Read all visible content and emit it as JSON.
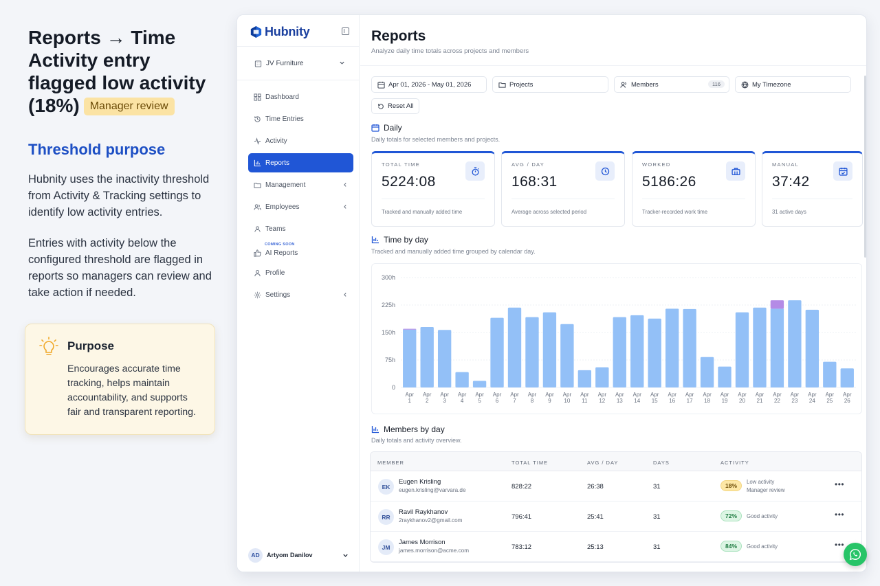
{
  "explainer": {
    "title": "Reports → Time Activity entry flagged low activity (18%)",
    "badge": "Manager review",
    "subheading": "Threshold purpose",
    "paragraph1": "Hubnity uses the inactivity threshold from Activity & Tracking settings to identify low activity entries.",
    "paragraph2": "Entries with activity below the configured threshold are flagged in reports so managers can review and take action if needed.",
    "purpose_title": "Purpose",
    "purpose_body": "Encourages accurate time tracking, helps maintain accountability, and supports fair and transparent reporting.",
    "purpose_icon": "lightbulb-icon"
  },
  "app": {
    "brand": "Hubnity",
    "org": "JV Furniture",
    "nav": [
      {
        "label": "Dashboard",
        "icon": "grid-icon"
      },
      {
        "label": "Time Entries",
        "icon": "history-icon"
      },
      {
        "label": "Activity",
        "icon": "activity-icon"
      },
      {
        "label": "Reports",
        "icon": "bar-chart-icon",
        "active": true
      },
      {
        "label": "Management",
        "icon": "folder-icon"
      },
      {
        "label": "Employees",
        "icon": "users-icon"
      },
      {
        "label": "Teams",
        "icon": "team-icon"
      },
      {
        "label": "AI Reports",
        "icon": "thumb-icon",
        "tag": "COMING SOON"
      },
      {
        "label": "Profile",
        "icon": "user-icon"
      },
      {
        "label": "Settings",
        "icon": "gear-icon"
      }
    ],
    "user": {
      "initials": "AD",
      "name": "Artyom Danilov"
    }
  },
  "page": {
    "title": "Reports",
    "subtitle": "Analyze daily time totals across projects and members",
    "filters": {
      "date_range": "Apr 01, 2026 - May 01, 2026",
      "projects": "Projects",
      "members": "Members",
      "members_count": "116",
      "timezone": "My Timezone",
      "reset": "Reset All"
    },
    "daily": {
      "title": "Daily",
      "subtitle": "Daily totals for selected members and projects."
    },
    "kpis": [
      {
        "label": "TOTAL TIME",
        "value": "5224:08",
        "foot": "Tracked and manually added time",
        "icon": "stopwatch-icon"
      },
      {
        "label": "AVG / DAY",
        "value": "168:31",
        "foot": "Average across selected period",
        "icon": "clock-icon"
      },
      {
        "label": "WORKED",
        "value": "5186:26",
        "foot": "Tracker-recorded work time",
        "icon": "briefcase-icon"
      },
      {
        "label": "MANUAL",
        "value": "37:42",
        "foot": "31 active days",
        "icon": "calendar-check-icon"
      }
    ],
    "time_by_day": {
      "title": "Time by day",
      "subtitle": "Tracked and manually added time grouped by calendar day."
    },
    "members_by_day": {
      "title": "Members by day",
      "subtitle": "Daily totals and activity overview."
    },
    "table": {
      "headers": [
        "MEMBER",
        "TOTAL TIME",
        "AVG / DAY",
        "DAYS",
        "ACTIVITY"
      ],
      "rows": [
        {
          "initials": "EK",
          "name": "Eugen Krisling",
          "email": "eugen.krisling@varvara.de",
          "total": "828:22",
          "avg": "26:38",
          "days": "31",
          "activity": "18%",
          "status": "Low activity",
          "note": "Manager review",
          "level": "low"
        },
        {
          "initials": "RR",
          "name": "Ravil Raykhanov",
          "email": "2raykhanov2@gmail.com",
          "total": "796:41",
          "avg": "25:41",
          "days": "31",
          "activity": "72%",
          "status": "Good activity",
          "level": "good"
        },
        {
          "initials": "JM",
          "name": "James Morrison",
          "email": "james.morrison@acme.com",
          "total": "783:12",
          "avg": "25:13",
          "days": "31",
          "activity": "84%",
          "status": "Good activity",
          "level": "good"
        }
      ]
    }
  },
  "chart_data": {
    "type": "bar",
    "title": "",
    "xlabel": "",
    "ylabel": "",
    "ylim": [
      0,
      300
    ],
    "yticks": [
      "0",
      "75h",
      "150h",
      "225h",
      "300h"
    ],
    "grid": true,
    "categories": [
      "Apr 1",
      "Apr 2",
      "Apr 3",
      "Apr 4",
      "Apr 5",
      "Apr 6",
      "Apr 7",
      "Apr 8",
      "Apr 9",
      "Apr 10",
      "Apr 11",
      "Apr 12",
      "Apr 13",
      "Apr 14",
      "Apr 15",
      "Apr 16",
      "Apr 17",
      "Apr 18",
      "Apr 19",
      "Apr 20",
      "Apr 21",
      "Apr 22",
      "Apr 23",
      "Apr 24",
      "Apr 25",
      "Apr 26"
    ],
    "series": [
      {
        "values": [
          158,
          165,
          157,
          42,
          18,
          190,
          218,
          192,
          205,
          173,
          47,
          55,
          192,
          197,
          188,
          215,
          214,
          83,
          57,
          205,
          218,
          215,
          238,
          212,
          70,
          52
        ],
        "color": "#93c0f7"
      },
      {
        "values": [
          2,
          0,
          0,
          0,
          0,
          0,
          0,
          0,
          0,
          0,
          0,
          0,
          0,
          0,
          0,
          0,
          0,
          0,
          0,
          0,
          0,
          23,
          0,
          0,
          0,
          0
        ],
        "color": "#b48be6"
      }
    ]
  },
  "colors": {
    "accent": "#2056d6",
    "low": "#fde7a6",
    "good": "#dcf5e4"
  }
}
